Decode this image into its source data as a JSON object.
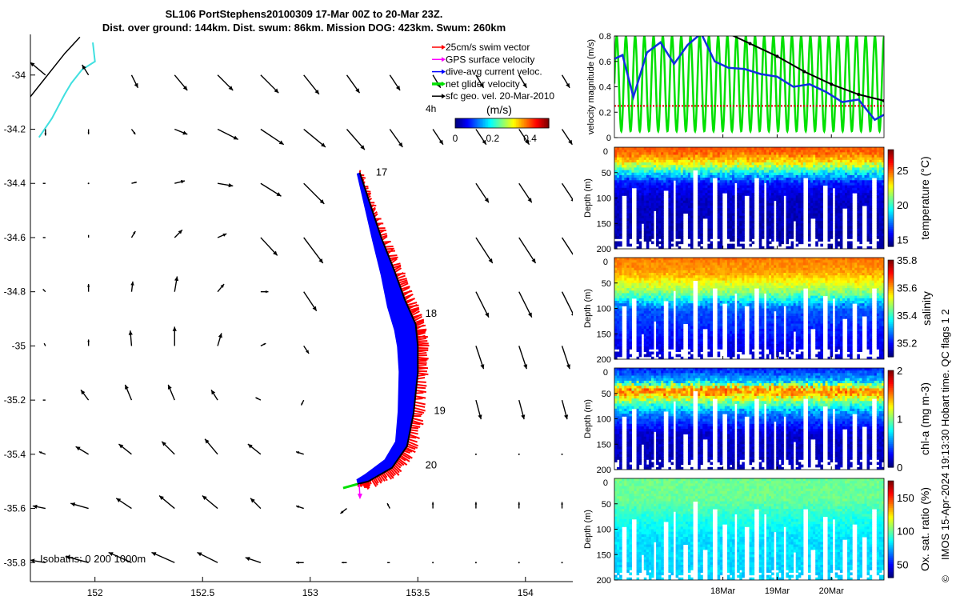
{
  "title_line1": "SL106 PortStephens20100309 17-Mar 00Z to 20-Mar 23Z.",
  "title_line2": "Dist. over ground: 144km. Dist. swum: 86km. Mission DOG: 423km. Swum: 260km",
  "colors": {
    "swim_vector": "#ff0000",
    "gps_surface": "#ff00ff",
    "dive_avg": "#0000ff",
    "net_glider": "#00e000",
    "sfc_geo": "#000000",
    "coastline": "#40e0e0"
  },
  "chart_data": [
    {
      "type": "map",
      "x_ticks": [
        "152",
        "152.5",
        "153",
        "153.5",
        "154"
      ],
      "y_ticks": [
        "-34",
        "-34.2",
        "-34.4",
        "-34.6",
        "-34.8",
        "-35",
        "-35.2",
        "-35.4",
        "-35.6",
        "-35.8"
      ],
      "xlim": [
        151.7,
        154.22
      ],
      "ylim": [
        -35.87,
        -33.85
      ],
      "legend": {
        "placement": "top-right",
        "entries": [
          "25cm/s swim vector",
          "GPS surface velocity",
          "dive-avg current veloc.",
          "net glider velocity",
          "sfc geo. vel. 20-Mar-2010"
        ]
      },
      "colorbar": {
        "label": "(m/s)",
        "ticks": [
          "0",
          "0.2",
          "0.4"
        ],
        "range": [
          0,
          0.5
        ]
      },
      "label_4h": "4h",
      "isobaths_label": "Isobaths: 0   200   1000m",
      "day_labels": [
        {
          "text": "17",
          "lon": 153.29,
          "lat": -34.36
        },
        {
          "text": "18",
          "lon": 153.52,
          "lat": -34.88
        },
        {
          "text": "19",
          "lon": 153.56,
          "lat": -35.24
        },
        {
          "text": "20",
          "lon": 153.52,
          "lat": -35.44
        }
      ],
      "track": [
        [
          153.23,
          -34.36
        ],
        [
          153.28,
          -34.48
        ],
        [
          153.33,
          -34.6
        ],
        [
          153.39,
          -34.72
        ],
        [
          153.44,
          -34.83
        ],
        [
          153.49,
          -34.92
        ],
        [
          153.5,
          -35.0
        ],
        [
          153.5,
          -35.1
        ],
        [
          153.48,
          -35.25
        ],
        [
          153.45,
          -35.37
        ],
        [
          153.38,
          -35.45
        ],
        [
          153.27,
          -35.5
        ],
        [
          153.22,
          -35.51
        ]
      ],
      "coastline": [
        [
          151.99,
          -33.88
        ],
        [
          152.0,
          -33.95
        ],
        [
          151.94,
          -33.98
        ],
        [
          151.89,
          -34.03
        ],
        [
          151.86,
          -34.07
        ],
        [
          151.8,
          -34.16
        ],
        [
          151.74,
          -34.23
        ]
      ],
      "geo_vectors": [
        {
          "lat": -34.0,
          "u": [
            -0.12,
            -0.05,
            0.05,
            0.1,
            0.12,
            0.14,
            0.12,
            0.1,
            0.08,
            0.06
          ],
          "v": [
            0.1,
            0.08,
            -0.1,
            -0.12,
            -0.12,
            -0.14,
            -0.15,
            -0.14,
            -0.12,
            -0.1
          ]
        },
        {
          "lat": -34.2,
          "u": [
            0.0,
            0.0,
            0.03,
            0.1,
            0.16,
            0.18,
            0.17,
            0.14,
            0.1,
            0.08
          ],
          "v": [
            -0.05,
            -0.04,
            -0.04,
            -0.04,
            -0.08,
            -0.12,
            -0.14,
            -0.16,
            -0.14,
            -0.12
          ]
        },
        {
          "lat": -34.4,
          "u": [
            -0.02,
            0.0,
            0.04,
            0.08,
            0.12,
            0.16,
            0.16,
            0.15,
            0.12,
            0.1
          ],
          "v": [
            0.0,
            0.0,
            0.01,
            0.02,
            -0.02,
            -0.1,
            -0.16,
            -0.2,
            -0.18,
            -0.15
          ]
        },
        {
          "lat": -34.6,
          "u": [
            -0.02,
            0.0,
            0.03,
            0.06,
            0.07,
            0.13,
            0.15,
            0.15,
            0.14,
            0.13
          ],
          "v": [
            0.0,
            0.02,
            0.05,
            0.06,
            0.03,
            -0.14,
            -0.2,
            -0.2,
            -0.2,
            -0.2
          ]
        },
        {
          "lat": -34.8,
          "u": [
            -0.02,
            0.0,
            0.01,
            0.02,
            0.05,
            0.06,
            0.1,
            0.1,
            0.1,
            0.1
          ],
          "v": [
            0.02,
            0.06,
            0.08,
            0.12,
            0.06,
            0.0,
            -0.15,
            -0.2,
            -0.2,
            -0.2
          ]
        },
        {
          "lat": -35.0,
          "u": [
            -0.01,
            0.0,
            -0.01,
            0.0,
            0.03,
            0.04,
            0.04,
            0.03,
            0.07,
            0.06
          ],
          "v": [
            0.02,
            0.05,
            0.12,
            0.15,
            0.1,
            0.02,
            -0.06,
            -0.08,
            -0.12,
            -0.18
          ]
        },
        {
          "lat": -35.2,
          "u": [
            -0.02,
            -0.06,
            -0.05,
            -0.05,
            -0.05,
            -0.04,
            -0.02,
            0.0,
            0.05,
            0.04
          ],
          "v": [
            0.0,
            0.08,
            0.12,
            0.12,
            0.08,
            0.02,
            -0.04,
            -0.06,
            -0.12,
            -0.15
          ]
        },
        {
          "lat": -35.4,
          "u": [
            -0.05,
            -0.1,
            -0.1,
            -0.1,
            -0.1,
            -0.1,
            -0.06,
            -0.03,
            0.0,
            0.0
          ],
          "v": [
            0.02,
            0.06,
            0.08,
            0.1,
            0.12,
            0.08,
            0.02,
            0.0,
            0.0,
            0.0
          ]
        },
        {
          "lat": -35.6,
          "u": [
            -0.1,
            -0.14,
            -0.12,
            -0.12,
            -0.12,
            -0.08,
            -0.06,
            -0.05,
            -0.02,
            0.0
          ],
          "v": [
            0.02,
            0.04,
            0.08,
            0.1,
            0.1,
            0.08,
            0.02,
            -0.04,
            0.04,
            0.05
          ]
        },
        {
          "lat": -35.8,
          "u": [
            -0.12,
            -0.18,
            -0.18,
            -0.18,
            -0.16,
            -0.12,
            -0.06,
            -0.04,
            -0.02,
            0.0
          ],
          "v": [
            0.02,
            0.05,
            0.08,
            0.08,
            0.08,
            0.04,
            0.0,
            0.0,
            0.0,
            0.0
          ]
        }
      ],
      "vector_lons": [
        151.77,
        151.97,
        152.17,
        152.37,
        152.57,
        152.77,
        152.97,
        153.17,
        153.37,
        153.57,
        153.77,
        153.97,
        154.17
      ]
    },
    {
      "type": "line",
      "ylabel": "velocity magnitude (m/s)",
      "yticks": [
        "0",
        "0.2",
        "0.4",
        "0.6",
        "0.8"
      ],
      "ylim": [
        0,
        0.8
      ],
      "xlim_days": [
        16.0,
        20.97
      ],
      "series": [
        {
          "name": "25cm/s swim vector",
          "color": "#e00000",
          "x": [
            16.0,
            20.97
          ],
          "y": [
            0.25,
            0.25
          ]
        },
        {
          "name": "dive-avg current veloc.",
          "color": "#1030e0",
          "x": [
            16.0,
            16.15,
            16.35,
            16.6,
            16.85,
            17.1,
            17.35,
            17.6,
            17.85,
            18.1,
            18.4,
            18.7,
            19.0,
            19.3,
            19.6,
            19.9,
            20.2,
            20.5,
            20.8,
            20.97
          ],
          "y": [
            0.62,
            0.65,
            0.32,
            0.67,
            0.75,
            0.58,
            0.73,
            0.82,
            0.6,
            0.55,
            0.54,
            0.5,
            0.48,
            0.4,
            0.42,
            0.36,
            0.28,
            0.3,
            0.14,
            0.18
          ]
        },
        {
          "name": "sfc geo. vel. 20-Mar-2010",
          "color": "#000000",
          "x": [
            16.0,
            16.5,
            17.0,
            17.5,
            18.0,
            18.5,
            19.0,
            19.5,
            20.0,
            20.5,
            20.97
          ],
          "y": [
            0.86,
            0.86,
            0.86,
            0.86,
            0.84,
            0.74,
            0.64,
            0.52,
            0.42,
            0.34,
            0.29
          ]
        },
        {
          "name": "net glider velocity",
          "color": "#00e000",
          "oscillation": {
            "low": 0.05,
            "high": 0.8,
            "period_days": 0.17
          }
        }
      ]
    },
    {
      "type": "heatmap",
      "label": "temperature (°C)",
      "ylabel": "Depth (m)",
      "depth_ticks": [
        "50",
        "100",
        "150",
        "200"
      ],
      "cbar_ticks": [
        "15",
        "20",
        "25"
      ],
      "crange": [
        14,
        28
      ],
      "profile": [
        [
          0,
          25
        ],
        [
          10,
          25
        ],
        [
          30,
          23
        ],
        [
          45,
          20
        ],
        [
          70,
          16
        ],
        [
          100,
          15
        ],
        [
          200,
          14.5
        ]
      ]
    },
    {
      "type": "heatmap",
      "label": "salinity",
      "ylabel": "Depth (m)",
      "depth_ticks": [
        "50",
        "100",
        "150",
        "200"
      ],
      "cbar_ticks": [
        "35.2",
        "35.4",
        "35.6",
        "35.8"
      ],
      "crange": [
        35.1,
        35.8
      ],
      "profile": [
        [
          0,
          35.63
        ],
        [
          30,
          35.6
        ],
        [
          70,
          35.45
        ],
        [
          100,
          35.25
        ],
        [
          200,
          35.15
        ]
      ]
    },
    {
      "type": "heatmap",
      "label": "chl-a (mg m-3)",
      "ylabel": "Depth (m)",
      "depth_ticks": [
        "50",
        "100",
        "150",
        "200"
      ],
      "cbar_ticks": [
        "0",
        "1",
        "2"
      ],
      "crange": [
        0,
        2
      ],
      "profile": [
        [
          0,
          0.3
        ],
        [
          25,
          0.6
        ],
        [
          45,
          1.6
        ],
        [
          65,
          1.0
        ],
        [
          90,
          0.5
        ],
        [
          130,
          0.15
        ],
        [
          200,
          0.1
        ]
      ]
    },
    {
      "type": "heatmap",
      "label": "Ox. sat. ratio (%)",
      "ylabel": "Depth (m)",
      "depth_ticks": [
        "50",
        "100",
        "150",
        "200"
      ],
      "cbar_ticks": [
        "50",
        "100",
        "150"
      ],
      "crange": [
        30,
        175
      ],
      "profile": [
        [
          0,
          100
        ],
        [
          40,
          100
        ],
        [
          80,
          88
        ],
        [
          120,
          80
        ],
        [
          200,
          78
        ]
      ]
    }
  ],
  "time_axis": {
    "ticks": [
      {
        "day": 18,
        "label": "18Mar"
      },
      {
        "day": 19,
        "label": "19Mar"
      },
      {
        "day": 20,
        "label": "20Mar"
      }
    ]
  },
  "side_note": "IMOS 15-Apr-2024 19:13:30 Hobart time. QC flags 1  2",
  "copyright": "©"
}
